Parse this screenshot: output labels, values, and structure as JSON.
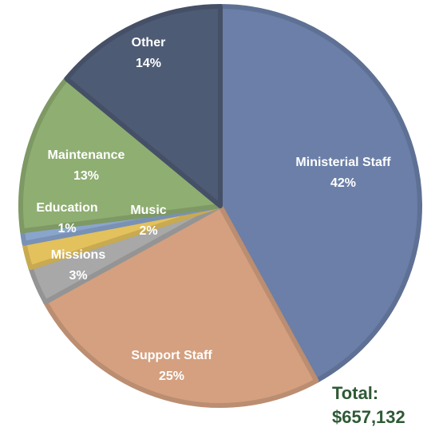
{
  "chart_data": {
    "type": "pie",
    "slices": [
      {
        "label": "Ministerial Staff",
        "percent_text": "42%",
        "value": 42,
        "color": "#6b7fa8"
      },
      {
        "label": "Support Staff",
        "percent_text": "25%",
        "value": 25,
        "color": "#d4a080"
      },
      {
        "label": "Missions",
        "percent_text": "3%",
        "value": 3,
        "color": "#a8a8a8"
      },
      {
        "label": "Music",
        "percent_text": "2%",
        "value": 2,
        "color": "#e3c15c"
      },
      {
        "label": "Education",
        "percent_text": "1%",
        "value": 1,
        "color": "#8aa5cc"
      },
      {
        "label": "Maintenance",
        "percent_text": "13%",
        "value": 13,
        "color": "#8fae72"
      },
      {
        "label": "Other",
        "percent_text": "14%",
        "value": 14,
        "color": "#4e5b75"
      }
    ],
    "total_label": "Total:",
    "total_value": "$657,132"
  }
}
